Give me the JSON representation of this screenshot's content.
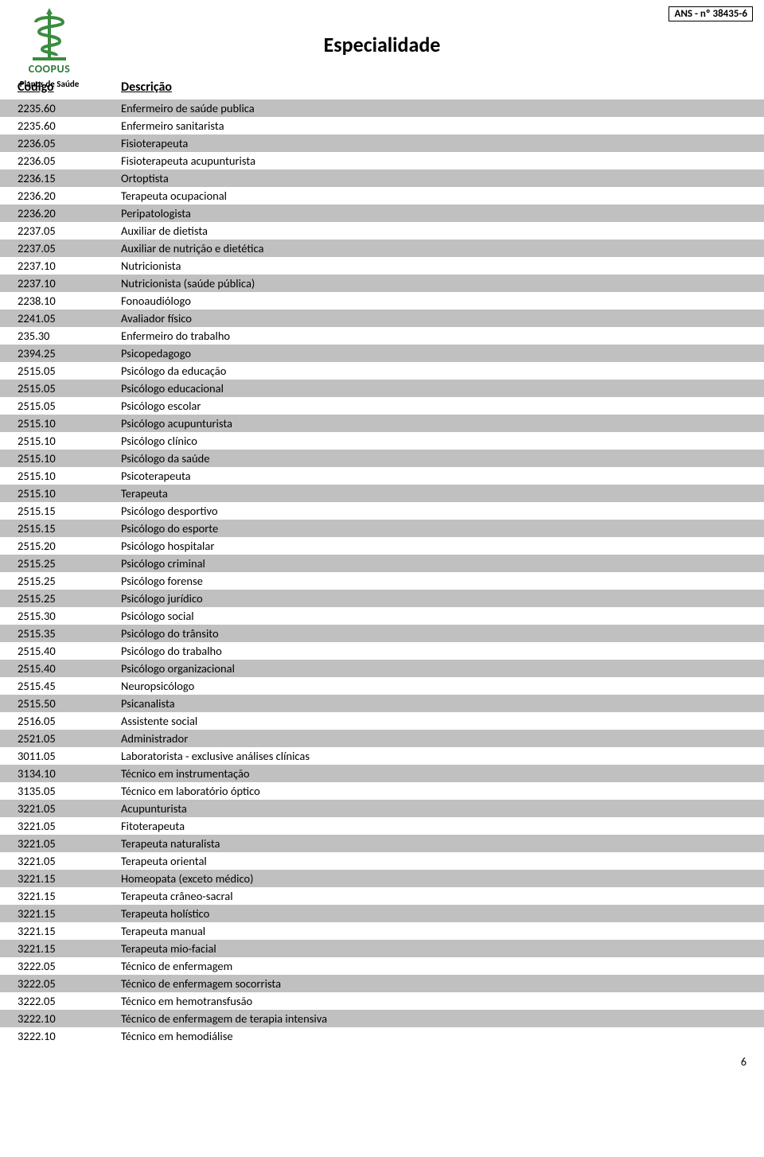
{
  "ans_label": "ANS - nº 38435-6",
  "brand": "COOPUS",
  "brand_sub": "Planos de Saúde",
  "title": "Especialidade",
  "columns": {
    "code": "Código",
    "desc": "Descrição"
  },
  "page_number": "6",
  "row_colors": {
    "even": "#c0c0c0",
    "odd": "#ffffff"
  },
  "logo_color": "#3a8c3f",
  "rows": [
    {
      "code": "2235.60",
      "desc": "Enfermeiro de saúde publica"
    },
    {
      "code": "2235.60",
      "desc": "Enfermeiro sanitarista"
    },
    {
      "code": "2236.05",
      "desc": "Fisioterapeuta"
    },
    {
      "code": "2236.05",
      "desc": "Fisioterapeuta acupunturista"
    },
    {
      "code": "2236.15",
      "desc": "Ortoptista"
    },
    {
      "code": "2236.20",
      "desc": "Terapeuta ocupacional"
    },
    {
      "code": "2236.20",
      "desc": "Peripatologista"
    },
    {
      "code": "2237.05",
      "desc": "Auxiliar de dietista"
    },
    {
      "code": "2237.05",
      "desc": "Auxiliar de nutrição e dietética"
    },
    {
      "code": "2237.10",
      "desc": "Nutricionista"
    },
    {
      "code": "2237.10",
      "desc": "Nutricionista (saúde pública)"
    },
    {
      "code": "2238.10",
      "desc": "Fonoaudiólogo"
    },
    {
      "code": "2241.05",
      "desc": "Avaliador físico"
    },
    {
      "code": "235.30",
      "desc": "Enfermeiro do trabalho"
    },
    {
      "code": "2394.25",
      "desc": "Psicopedagogo"
    },
    {
      "code": "2515.05",
      "desc": "Psicólogo da educação"
    },
    {
      "code": "2515.05",
      "desc": "Psicólogo educacional"
    },
    {
      "code": "2515.05",
      "desc": "Psicólogo escolar"
    },
    {
      "code": "2515.10",
      "desc": "Psicólogo acupunturista"
    },
    {
      "code": "2515.10",
      "desc": "Psicólogo clínico"
    },
    {
      "code": "2515.10",
      "desc": "Psicólogo da saúde"
    },
    {
      "code": "2515.10",
      "desc": "Psicoterapeuta"
    },
    {
      "code": "2515.10",
      "desc": "Terapeuta"
    },
    {
      "code": "2515.15",
      "desc": "Psicólogo desportivo"
    },
    {
      "code": "2515.15",
      "desc": "Psicólogo do esporte"
    },
    {
      "code": "2515.20",
      "desc": "Psicólogo hospitalar"
    },
    {
      "code": "2515.25",
      "desc": "Psicólogo criminal"
    },
    {
      "code": "2515.25",
      "desc": "Psicólogo forense"
    },
    {
      "code": "2515.25",
      "desc": "Psicólogo jurídico"
    },
    {
      "code": "2515.30",
      "desc": "Psicólogo social"
    },
    {
      "code": "2515.35",
      "desc": "Psicólogo do trânsito"
    },
    {
      "code": "2515.40",
      "desc": "Psicólogo do trabalho"
    },
    {
      "code": "2515.40",
      "desc": "Psicólogo organizacional"
    },
    {
      "code": "2515.45",
      "desc": "Neuropsicólogo"
    },
    {
      "code": "2515.50",
      "desc": "Psicanalista"
    },
    {
      "code": "2516.05",
      "desc": "Assistente social"
    },
    {
      "code": "2521.05",
      "desc": "Administrador"
    },
    {
      "code": "3011.05",
      "desc": "Laboratorista - exclusive análises clínicas"
    },
    {
      "code": "3134.10",
      "desc": "Técnico em instrumentação"
    },
    {
      "code": "3135.05",
      "desc": "Técnico em laboratório óptico"
    },
    {
      "code": "3221.05",
      "desc": "Acupunturista"
    },
    {
      "code": "3221.05",
      "desc": "Fitoterapeuta"
    },
    {
      "code": "3221.05",
      "desc": "Terapeuta naturalista"
    },
    {
      "code": "3221.05",
      "desc": "Terapeuta oriental"
    },
    {
      "code": "3221.15",
      "desc": "Homeopata (exceto médico)"
    },
    {
      "code": "3221.15",
      "desc": "Terapeuta crâneo-sacral"
    },
    {
      "code": "3221.15",
      "desc": "Terapeuta holístico"
    },
    {
      "code": "3221.15",
      "desc": "Terapeuta manual"
    },
    {
      "code": "3221.15",
      "desc": "Terapeuta mio-facial"
    },
    {
      "code": "3222.05",
      "desc": "Técnico de enfermagem"
    },
    {
      "code": "3222.05",
      "desc": "Técnico de enfermagem socorrista"
    },
    {
      "code": "3222.05",
      "desc": "Técnico em hemotransfusão"
    },
    {
      "code": "3222.10",
      "desc": "Técnico de enfermagem de terapia intensiva"
    },
    {
      "code": "3222.10",
      "desc": "Técnico em hemodiálise"
    }
  ]
}
